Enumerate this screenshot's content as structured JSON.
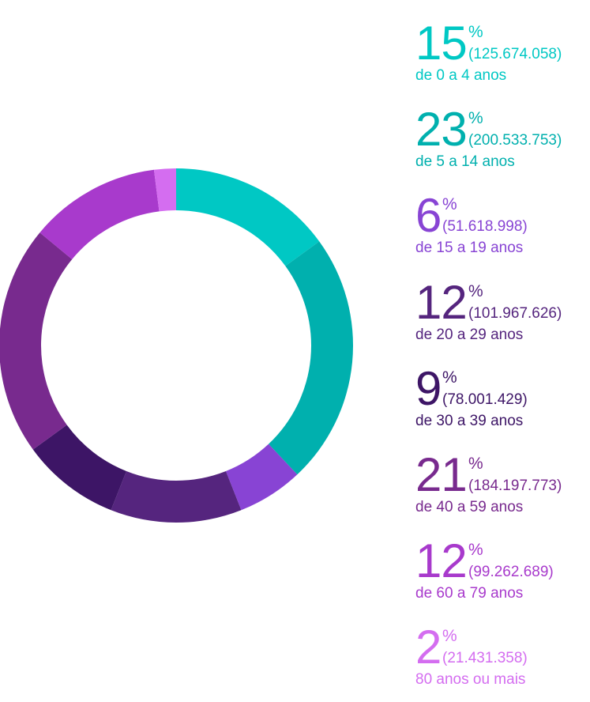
{
  "chart_data": {
    "type": "pie",
    "categories": [
      "de 0 a 4 anos",
      "de 5 a 14 anos",
      "de 15 a 19 anos",
      "de 20 a 29 anos",
      "de 30 a 39 anos",
      "de 40 a 59 anos",
      "de 60 a 79 anos",
      "80 anos ou mais"
    ],
    "values": [
      15,
      23,
      6,
      12,
      9,
      21,
      12,
      2
    ],
    "counts": [
      "(125.674.058)",
      "(200.533.753)",
      "(51.618.998)",
      "(101.967.626)",
      "(78.001.429)",
      "(184.197.773)",
      "(99.262.689)",
      "(21.431.358)"
    ],
    "colors": [
      "#00c8c4",
      "#00b0ae",
      "#8844d4",
      "#55257e",
      "#3d1566",
      "#782a8e",
      "#a83acc",
      "#d46df0"
    ],
    "unit": "%"
  },
  "legend": [
    {
      "value": "15",
      "unit": "%",
      "count": "(125.674.058)",
      "range": "de 0 a 4 anos"
    },
    {
      "value": "23",
      "unit": "%",
      "count": "(200.533.753)",
      "range": "de 5 a 14 anos"
    },
    {
      "value": "6",
      "unit": "%",
      "count": "(51.618.998)",
      "range": "de 15 a 19 anos"
    },
    {
      "value": "12",
      "unit": "%",
      "count": "(101.967.626)",
      "range": "de 20 a 29 anos"
    },
    {
      "value": "9",
      "unit": "%",
      "count": "(78.001.429)",
      "range": "de 30 a 39 anos"
    },
    {
      "value": "21",
      "unit": "%",
      "count": "(184.197.773)",
      "range": "de 40 a 59 anos"
    },
    {
      "value": "12",
      "unit": "%",
      "count": "(99.262.689)",
      "range": "de 60 a 79 anos"
    },
    {
      "value": "2",
      "unit": "%",
      "count": "(21.431.358)",
      "range": "80 anos ou mais"
    }
  ]
}
